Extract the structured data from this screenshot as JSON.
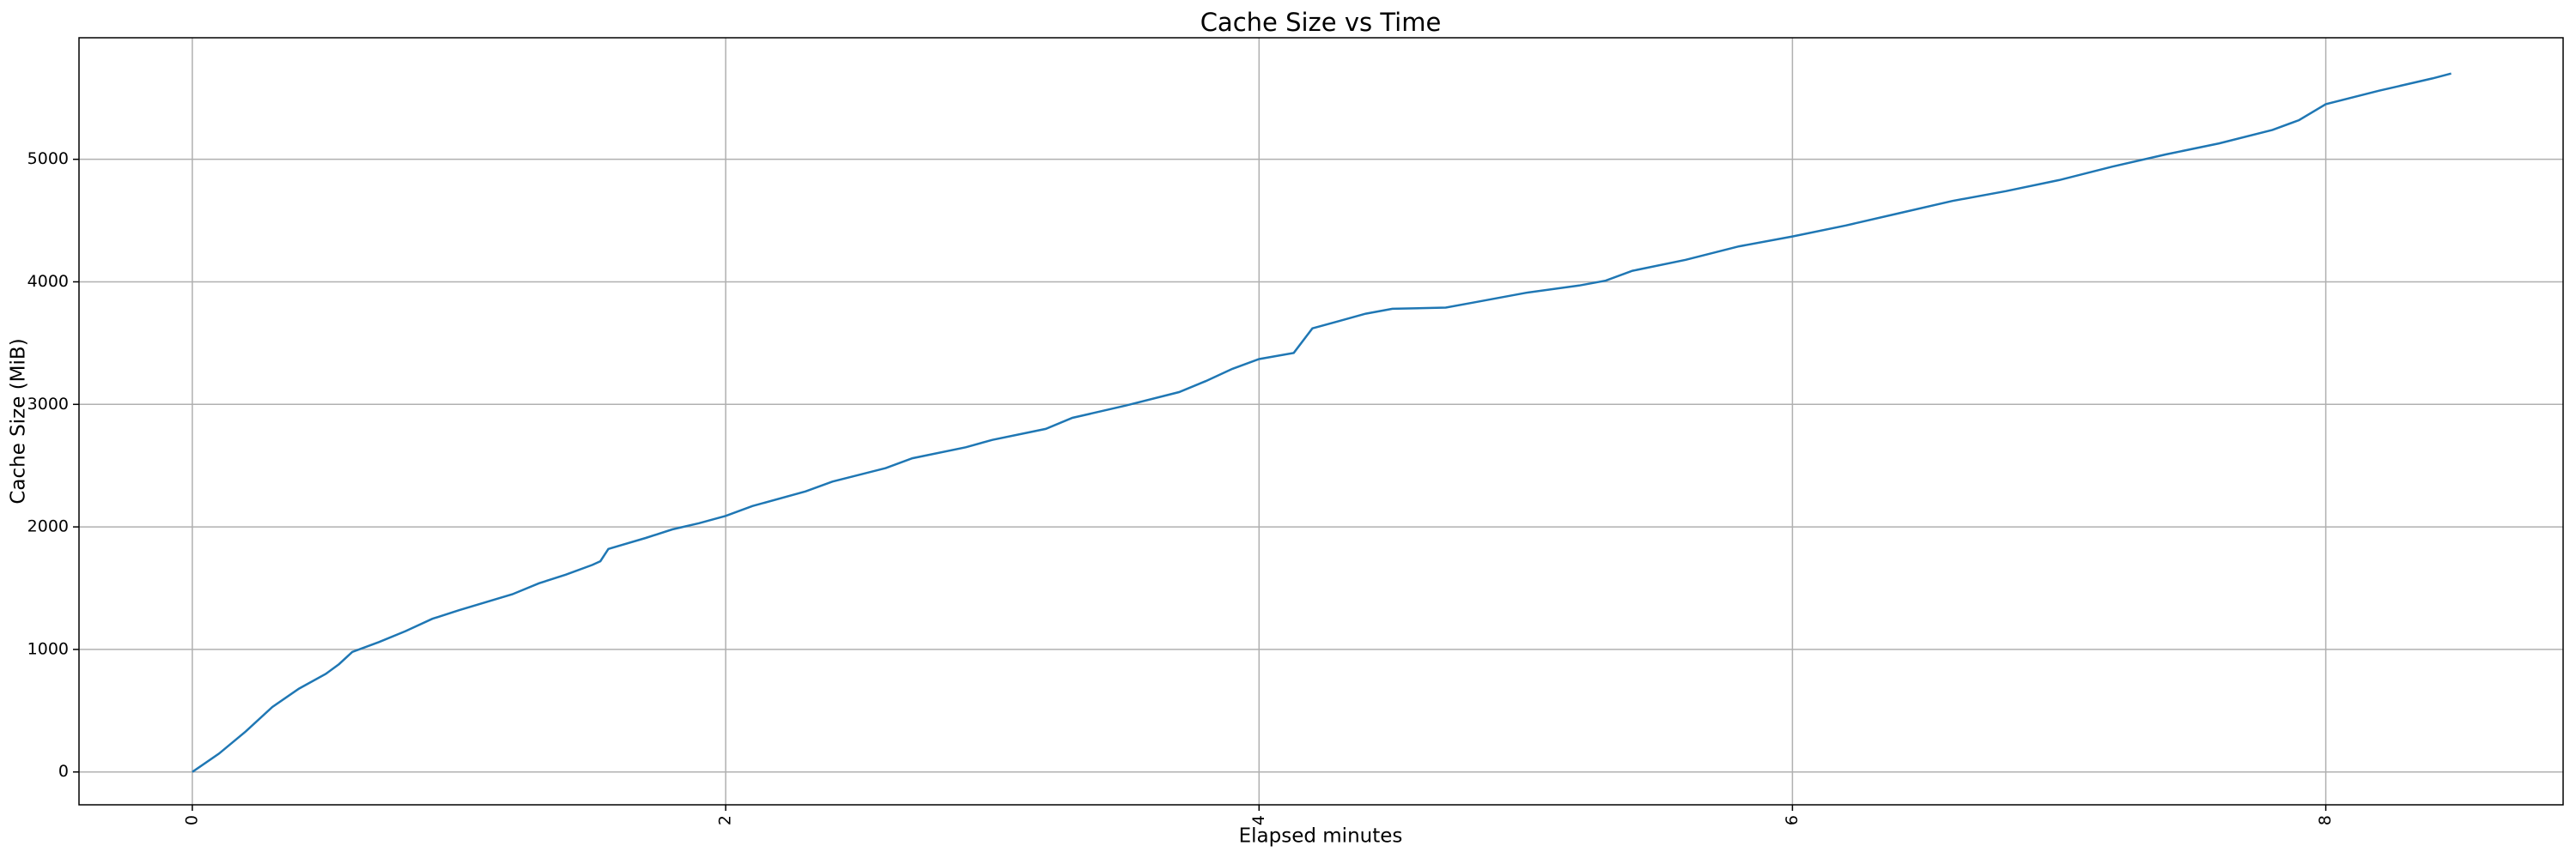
{
  "chart_data": {
    "type": "line",
    "title": "Cache Size vs Time",
    "x_label": "Elapsed minutes",
    "y_label": "Cache Size (MiB)",
    "color": "#1f77b4",
    "x": [
      0,
      0.1,
      0.2,
      0.3,
      0.4,
      0.5,
      0.55,
      0.6,
      0.7,
      0.8,
      0.9,
      1.0,
      1.2,
      1.3,
      1.4,
      1.5,
      1.53,
      1.56,
      1.7,
      1.8,
      1.9,
      2.0,
      2.1,
      2.3,
      2.4,
      2.6,
      2.7,
      2.9,
      3.0,
      3.2,
      3.3,
      3.5,
      3.7,
      3.8,
      3.9,
      4.0,
      4.13,
      4.2,
      4.3,
      4.4,
      4.5,
      4.7,
      4.8,
      5.0,
      5.2,
      5.3,
      5.4,
      5.6,
      5.8,
      6.0,
      6.2,
      6.4,
      6.6,
      6.8,
      7.0,
      7.2,
      7.4,
      7.6,
      7.8,
      7.9,
      8.0,
      8.2,
      8.4,
      8.47
    ],
    "values": [
      0,
      150,
      330,
      530,
      680,
      800,
      880,
      980,
      1060,
      1150,
      1250,
      1320,
      1450,
      1540,
      1610,
      1690,
      1720,
      1820,
      1910,
      1980,
      2030,
      2090,
      2170,
      2290,
      2370,
      2480,
      2560,
      2650,
      2710,
      2800,
      2890,
      2990,
      3100,
      3190,
      3290,
      3370,
      3420,
      3620,
      3680,
      3740,
      3780,
      3790,
      3830,
      3910,
      3970,
      4010,
      4090,
      4180,
      4290,
      4370,
      4460,
      4560,
      4660,
      4740,
      4830,
      4940,
      5040,
      5130,
      5240,
      5320,
      5450,
      5560,
      5660,
      5700
    ],
    "xlim": [
      -0.425,
      8.89
    ],
    "xticks": [
      0,
      2,
      4,
      6,
      8
    ],
    "ylim": [
      -268,
      5992
    ],
    "yticks": [
      0,
      1000,
      2000,
      3000,
      4000,
      5000
    ],
    "grid": true
  }
}
